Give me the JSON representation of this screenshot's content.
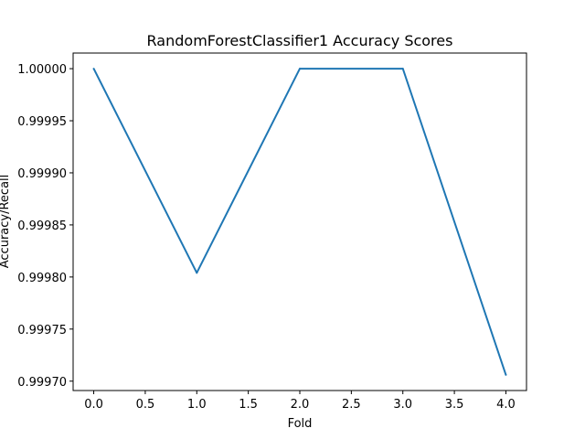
{
  "chart_data": {
    "type": "line",
    "title": "RandomForestClassifier1 Accuracy Scores",
    "xlabel": "Fold",
    "ylabel": "Accuracy/Recall",
    "x": [
      0,
      1,
      2,
      3,
      4
    ],
    "series": [
      {
        "values": [
          1.0,
          0.999804,
          1.0,
          1.0,
          0.999706
        ],
        "color": "#1f77b4"
      }
    ],
    "xlim": [
      -0.2,
      4.2
    ],
    "ylim": [
      0.999691,
      1.000015
    ],
    "xticks": [
      0.0,
      0.5,
      1.0,
      1.5,
      2.0,
      2.5,
      3.0,
      3.5,
      4.0
    ],
    "xtick_labels": [
      "0.0",
      "0.5",
      "1.0",
      "1.5",
      "2.0",
      "2.5",
      "3.0",
      "3.5",
      "4.0"
    ],
    "yticks": [
      0.9997,
      0.99975,
      0.9998,
      0.99985,
      0.9999,
      0.99995,
      1.0
    ],
    "ytick_labels": [
      "0.99970",
      "0.99975",
      "0.99980",
      "0.99985",
      "0.99990",
      "0.99995",
      "1.00000"
    ],
    "grid": false,
    "legend": "none"
  }
}
